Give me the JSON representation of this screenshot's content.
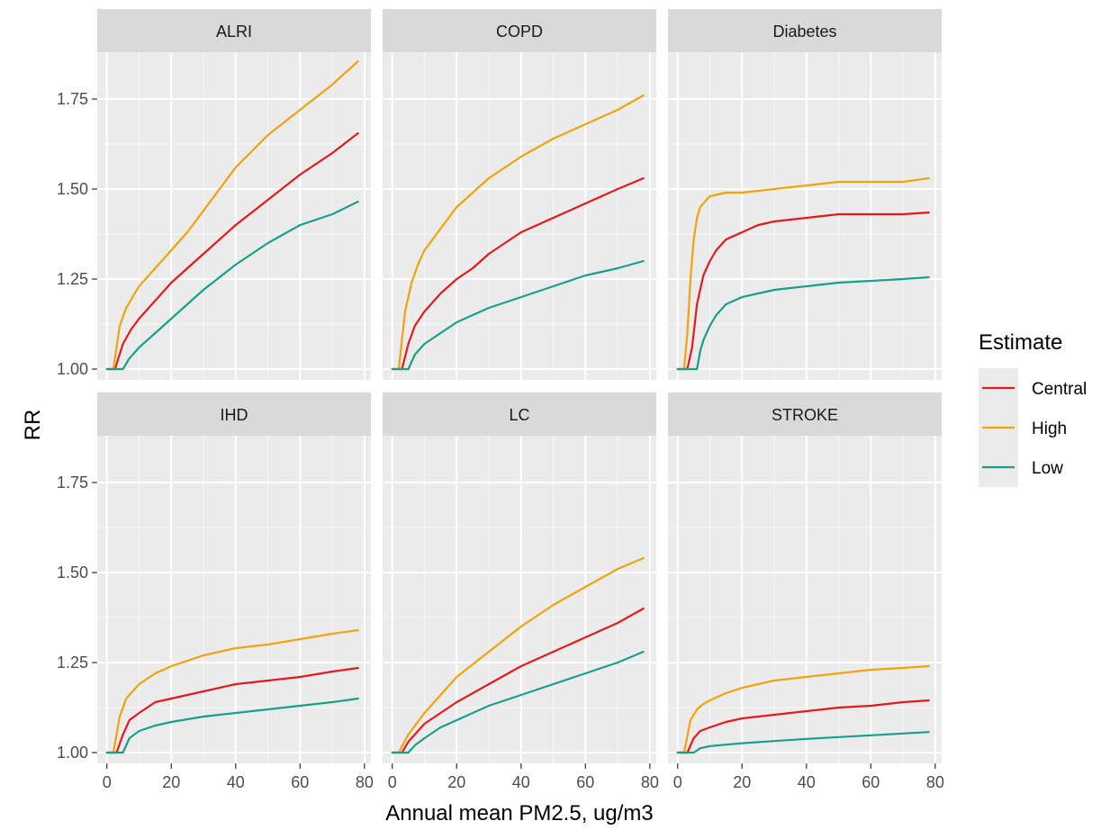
{
  "chart_data": {
    "type": "line",
    "xlabel": "Annual mean PM2.5, ug/m3",
    "ylabel": "RR",
    "xlim": [
      -3,
      82
    ],
    "ylim": [
      0.97,
      1.88
    ],
    "x_ticks": [
      0,
      20,
      40,
      60,
      80
    ],
    "x_tick_labels": [
      "0",
      "20",
      "40",
      "60",
      "80"
    ],
    "y_ticks": [
      1.0,
      1.25,
      1.5,
      1.75
    ],
    "y_tick_labels": [
      "1.00",
      "1.25",
      "1.50",
      "1.75"
    ],
    "grid": true,
    "legend": {
      "title": "Estimate",
      "placement": "right",
      "entries": [
        {
          "name": "Central",
          "color": "#e41a1c"
        },
        {
          "name": "High",
          "color": "#f0a30a"
        },
        {
          "name": "Low",
          "color": "#18a08c"
        }
      ]
    },
    "panels": [
      {
        "title": "ALRI",
        "series": [
          {
            "name": "Central",
            "x": [
              0,
              2.5,
              5,
              7.5,
              10,
              15,
              20,
              25,
              30,
              40,
              50,
              60,
              70,
              78
            ],
            "y": [
              1.0,
              1.0,
              1.07,
              1.11,
              1.14,
              1.19,
              1.24,
              1.28,
              1.32,
              1.4,
              1.47,
              1.54,
              1.6,
              1.655
            ]
          },
          {
            "name": "High",
            "x": [
              0,
              2,
              4,
              6,
              8,
              10,
              15,
              20,
              25,
              30,
              40,
              50,
              60,
              70,
              78
            ],
            "y": [
              1.0,
              1.0,
              1.12,
              1.17,
              1.2,
              1.23,
              1.28,
              1.33,
              1.38,
              1.44,
              1.56,
              1.65,
              1.72,
              1.79,
              1.855
            ]
          },
          {
            "name": "Low",
            "x": [
              0,
              5,
              7,
              10,
              15,
              20,
              25,
              30,
              40,
              50,
              60,
              70,
              78
            ],
            "y": [
              1.0,
              1.0,
              1.03,
              1.06,
              1.1,
              1.14,
              1.18,
              1.22,
              1.29,
              1.35,
              1.4,
              1.43,
              1.465
            ]
          }
        ]
      },
      {
        "title": "COPD",
        "series": [
          {
            "name": "Central",
            "x": [
              0,
              3,
              5,
              7,
              10,
              15,
              20,
              25,
              30,
              40,
              50,
              60,
              70,
              78
            ],
            "y": [
              1.0,
              1.0,
              1.07,
              1.12,
              1.16,
              1.21,
              1.25,
              1.28,
              1.32,
              1.38,
              1.42,
              1.46,
              1.5,
              1.53
            ]
          },
          {
            "name": "High",
            "x": [
              0,
              2,
              4,
              6,
              8,
              10,
              15,
              20,
              25,
              30,
              40,
              50,
              60,
              70,
              78
            ],
            "y": [
              1.0,
              1.0,
              1.16,
              1.24,
              1.29,
              1.33,
              1.39,
              1.45,
              1.49,
              1.53,
              1.59,
              1.64,
              1.68,
              1.72,
              1.76
            ]
          },
          {
            "name": "Low",
            "x": [
              0,
              5,
              7,
              10,
              15,
              20,
              25,
              30,
              40,
              50,
              60,
              70,
              78
            ],
            "y": [
              1.0,
              1.0,
              1.04,
              1.07,
              1.1,
              1.13,
              1.15,
              1.17,
              1.2,
              1.23,
              1.26,
              1.28,
              1.3
            ]
          }
        ]
      },
      {
        "title": "Diabetes",
        "series": [
          {
            "name": "Central",
            "x": [
              0,
              3,
              4.5,
              6,
              8,
              10,
              12,
              15,
              20,
              25,
              30,
              40,
              50,
              60,
              70,
              78
            ],
            "y": [
              1.0,
              1.0,
              1.06,
              1.18,
              1.26,
              1.3,
              1.33,
              1.36,
              1.38,
              1.4,
              1.41,
              1.42,
              1.43,
              1.43,
              1.43,
              1.435
            ]
          },
          {
            "name": "High",
            "x": [
              0,
              2,
              3,
              4,
              5,
              6,
              7,
              8,
              10,
              15,
              20,
              30,
              40,
              50,
              60,
              70,
              78
            ],
            "y": [
              1.0,
              1.0,
              1.1,
              1.25,
              1.36,
              1.42,
              1.45,
              1.46,
              1.48,
              1.49,
              1.49,
              1.5,
              1.51,
              1.52,
              1.52,
              1.52,
              1.53
            ]
          },
          {
            "name": "Low",
            "x": [
              0,
              6,
              7,
              8,
              10,
              12,
              15,
              20,
              25,
              30,
              40,
              50,
              60,
              70,
              78
            ],
            "y": [
              1.0,
              1.0,
              1.05,
              1.08,
              1.12,
              1.15,
              1.18,
              1.2,
              1.21,
              1.22,
              1.23,
              1.24,
              1.245,
              1.25,
              1.255
            ]
          }
        ]
      },
      {
        "title": "IHD",
        "series": [
          {
            "name": "Central",
            "x": [
              0,
              3,
              5,
              7,
              10,
              15,
              20,
              30,
              40,
              50,
              60,
              70,
              78
            ],
            "y": [
              1.0,
              1.0,
              1.05,
              1.09,
              1.11,
              1.14,
              1.15,
              1.17,
              1.19,
              1.2,
              1.21,
              1.225,
              1.235
            ]
          },
          {
            "name": "High",
            "x": [
              0,
              2,
              4,
              6,
              8,
              10,
              15,
              20,
              30,
              40,
              50,
              60,
              70,
              78
            ],
            "y": [
              1.0,
              1.0,
              1.1,
              1.15,
              1.17,
              1.19,
              1.22,
              1.24,
              1.27,
              1.29,
              1.3,
              1.315,
              1.33,
              1.34
            ]
          },
          {
            "name": "Low",
            "x": [
              0,
              5,
              7,
              10,
              15,
              20,
              30,
              40,
              50,
              60,
              70,
              78
            ],
            "y": [
              1.0,
              1.0,
              1.04,
              1.06,
              1.075,
              1.085,
              1.1,
              1.11,
              1.12,
              1.13,
              1.14,
              1.15
            ]
          }
        ]
      },
      {
        "title": "LC",
        "series": [
          {
            "name": "Central",
            "x": [
              0,
              3,
              5,
              10,
              15,
              20,
              30,
              40,
              50,
              60,
              70,
              78
            ],
            "y": [
              1.0,
              1.0,
              1.03,
              1.08,
              1.11,
              1.14,
              1.19,
              1.24,
              1.28,
              1.32,
              1.36,
              1.4
            ]
          },
          {
            "name": "High",
            "x": [
              0,
              2,
              5,
              10,
              15,
              20,
              30,
              40,
              50,
              60,
              70,
              78
            ],
            "y": [
              1.0,
              1.0,
              1.05,
              1.11,
              1.16,
              1.21,
              1.28,
              1.35,
              1.41,
              1.46,
              1.51,
              1.54
            ]
          },
          {
            "name": "Low",
            "x": [
              0,
              5,
              7,
              10,
              15,
              20,
              30,
              40,
              50,
              60,
              70,
              78
            ],
            "y": [
              1.0,
              1.0,
              1.02,
              1.04,
              1.07,
              1.09,
              1.13,
              1.16,
              1.19,
              1.22,
              1.25,
              1.28
            ]
          }
        ]
      },
      {
        "title": "STROKE",
        "series": [
          {
            "name": "Central",
            "x": [
              0,
              3,
              5,
              7,
              10,
              15,
              20,
              30,
              40,
              50,
              60,
              70,
              78
            ],
            "y": [
              1.0,
              1.0,
              1.04,
              1.06,
              1.07,
              1.085,
              1.095,
              1.105,
              1.115,
              1.125,
              1.13,
              1.14,
              1.145
            ]
          },
          {
            "name": "High",
            "x": [
              0,
              2,
              4,
              6,
              8,
              10,
              15,
              20,
              30,
              40,
              50,
              60,
              70,
              78
            ],
            "y": [
              1.0,
              1.0,
              1.09,
              1.12,
              1.135,
              1.145,
              1.165,
              1.18,
              1.2,
              1.21,
              1.22,
              1.23,
              1.235,
              1.24
            ]
          },
          {
            "name": "Low",
            "x": [
              0,
              5,
              7,
              10,
              15,
              20,
              30,
              40,
              50,
              60,
              70,
              78
            ],
            "y": [
              1.0,
              1.0,
              1.012,
              1.018,
              1.022,
              1.026,
              1.032,
              1.038,
              1.043,
              1.048,
              1.053,
              1.057
            ]
          }
        ]
      }
    ]
  }
}
